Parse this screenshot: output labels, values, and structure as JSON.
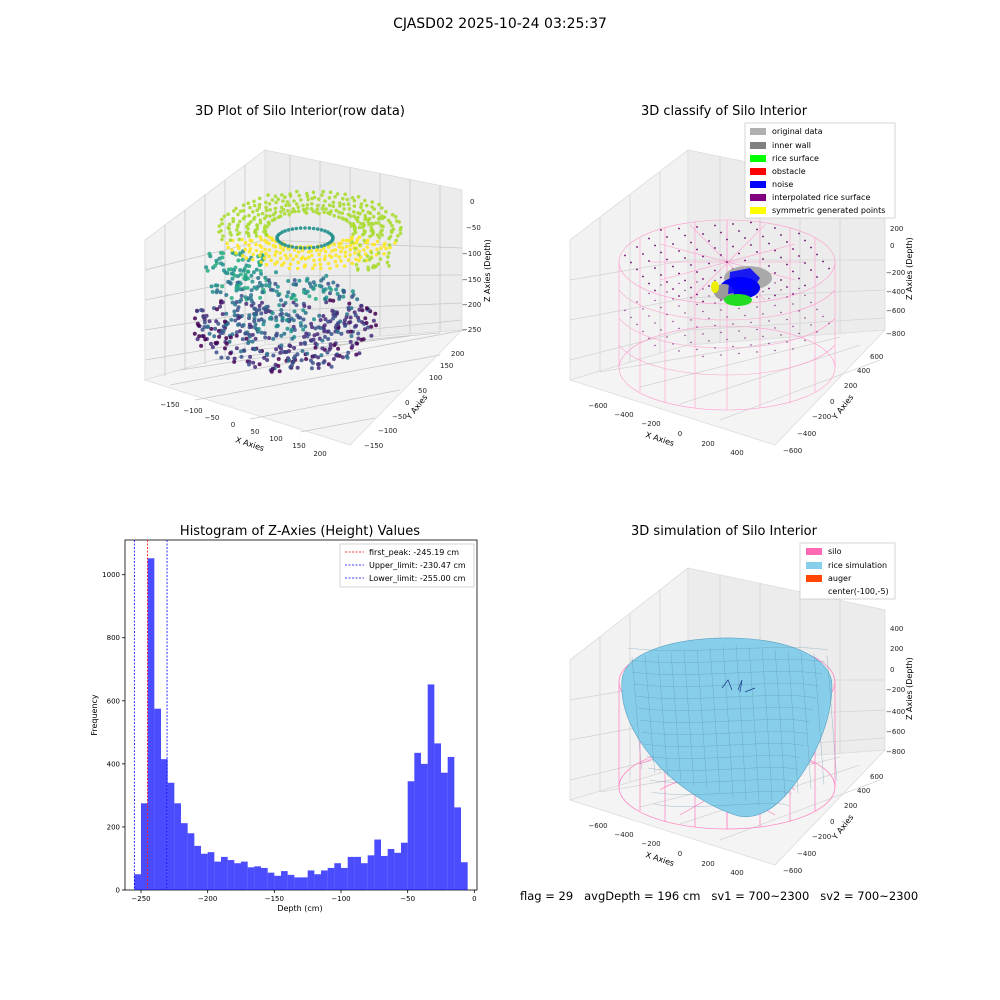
{
  "suptitle": "CJASD02 2025-10-24 03:25:37",
  "status_line": "flag = 29   avgDepth = 196 cm   sv1 = 700~2300   sv2 = 700~2300",
  "colors": {
    "silo": "#ff69b4",
    "rice_simulation": "#87ceeb",
    "auger": "#ff4500",
    "histogram": "#0000ff",
    "first_peak": "#ff0000",
    "limits": "#0000ff"
  },
  "chart_data": [
    {
      "type": "scatter",
      "projection": "3d",
      "title": "3D Plot of Silo Interior(row data)",
      "xlabel": "X Axies",
      "ylabel": "Y Axies",
      "zlabel": "Z Axies (Depth)",
      "x_ticks": [
        "−150",
        "−100",
        "−50",
        "0",
        "50",
        "100",
        "150",
        "200"
      ],
      "y_ticks": [
        "−150",
        "−100",
        "−50",
        "0",
        "50",
        "100",
        "150",
        "200"
      ],
      "z_ticks": [
        "0",
        "−50",
        "−100",
        "−150",
        "−200",
        "−250"
      ],
      "xlim": [
        -170,
        220
      ],
      "ylim": [
        -170,
        210
      ],
      "zlim": [
        -270,
        0
      ],
      "colormap": "viridis"
    },
    {
      "type": "scatter",
      "projection": "3d",
      "title": "3D classify of Silo Interior",
      "xlabel": "X Axies",
      "ylabel": "Y Axies",
      "zlabel": "Z Axies (Depth)",
      "x_ticks": [
        "−600",
        "−400",
        "−200",
        "0",
        "200",
        "400"
      ],
      "y_ticks": [
        "−600",
        "−400",
        "−200",
        "0",
        "200",
        "400",
        "600"
      ],
      "z_ticks": [
        "−800",
        "−600",
        "−400",
        "−200",
        "0",
        "200"
      ],
      "legend": [
        {
          "label": "original data",
          "color": "#b0b0b0"
        },
        {
          "label": "inner wall",
          "color": "#808080"
        },
        {
          "label": "rice surface",
          "color": "#00ff00"
        },
        {
          "label": "obstacle",
          "color": "#ff0000"
        },
        {
          "label": "noise",
          "color": "#0000ff"
        },
        {
          "label": "interpolated rice surface",
          "color": "#800080"
        },
        {
          "label": "symmetric generated points",
          "color": "#ffff00"
        }
      ],
      "legend_position": "upper right"
    },
    {
      "type": "bar",
      "title": "Histogram of Z-Axies (Height) Values",
      "xlabel": "Depth (cm)",
      "ylabel": "Frequency",
      "xlim": [
        -262,
        2
      ],
      "ylim": [
        0,
        1110
      ],
      "x_ticks": [
        -250,
        -200,
        -150,
        -100,
        -50,
        0
      ],
      "x_tick_labels": [
        "−250",
        "−200",
        "−150",
        "−100",
        "−50",
        "0"
      ],
      "y_ticks": [
        0,
        200,
        400,
        600,
        800,
        1000
      ],
      "bin_width": 5,
      "bins_start": -255,
      "values": [
        50,
        275,
        1052,
        575,
        415,
        340,
        275,
        212,
        180,
        140,
        115,
        120,
        90,
        105,
        95,
        85,
        90,
        72,
        75,
        70,
        55,
        45,
        60,
        48,
        40,
        40,
        62,
        50,
        62,
        70,
        85,
        70,
        105,
        105,
        85,
        110,
        160,
        108,
        130,
        118,
        150,
        345,
        435,
        400,
        652,
        465,
        372,
        422,
        262,
        88
      ],
      "vlines": [
        {
          "label": "first_peak: -245.19 cm",
          "x": -245.19,
          "color": "#ff0000"
        },
        {
          "label": "Upper_limit: -230.47 cm",
          "x": -230.47,
          "color": "#0000ff"
        },
        {
          "label": "Lower_limit: -255.00 cm",
          "x": -255.0,
          "color": "#0000ff"
        }
      ],
      "legend_position": "upper right"
    },
    {
      "type": "surface",
      "projection": "3d",
      "title": "3D simulation of Silo Interior",
      "xlabel": "X Axies",
      "ylabel": "Y Axies",
      "zlabel": "Z Axies (Depth)",
      "x_ticks": [
        "−600",
        "−400",
        "−200",
        "0",
        "200",
        "400"
      ],
      "y_ticks": [
        "−600",
        "−400",
        "−200",
        "0",
        "200",
        "400",
        "600"
      ],
      "z_ticks": [
        "−800",
        "−600",
        "−400",
        "−200",
        "0",
        "200",
        "400"
      ],
      "legend": [
        {
          "label": "silo",
          "color": "#ff69b4"
        },
        {
          "label": "rice simulation",
          "color": "#87ceeb"
        },
        {
          "label": "auger",
          "color": "#ff4500"
        },
        {
          "label": "center(-100,-5)",
          "color": ""
        }
      ],
      "legend_position": "upper right"
    }
  ]
}
